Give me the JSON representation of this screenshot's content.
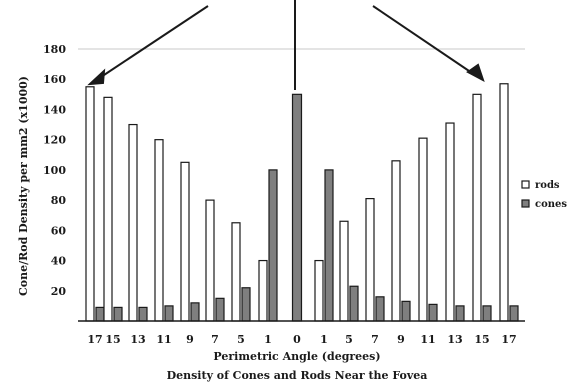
{
  "chart_data": {
    "type": "bar",
    "title": "Density of Cones and Rods Near the Fovea",
    "xlabel": "Perimetric Angle (degrees)",
    "ylabel": "Cone/Rod Density per mm2 (x1000)",
    "ylim": [
      0,
      180
    ],
    "yticks": [
      "180",
      "160",
      "140",
      "120",
      "100",
      "80",
      "60",
      "40",
      "20"
    ],
    "categories": [
      "17",
      "15",
      "13",
      "11",
      "9",
      "7",
      "5",
      "1",
      "0",
      "1",
      "5",
      "7",
      "9",
      "11",
      "13",
      "15",
      "17"
    ],
    "series": [
      {
        "name": "rods",
        "values": [
          155,
          148,
          130,
          120,
          105,
          80,
          65,
          40,
          0,
          40,
          66,
          81,
          106,
          121,
          131,
          150,
          157
        ]
      },
      {
        "name": "cones",
        "values": [
          9,
          9,
          9,
          10,
          12,
          15,
          22,
          100,
          150,
          100,
          23,
          16,
          13,
          11,
          10,
          10,
          10
        ]
      }
    ],
    "grid": false,
    "legend": "right",
    "colors": {
      "rods": "#ffffff",
      "cones": "#7f7f7f",
      "axis": "#1a1a1a",
      "reference_line": "#c8c8c8"
    }
  }
}
